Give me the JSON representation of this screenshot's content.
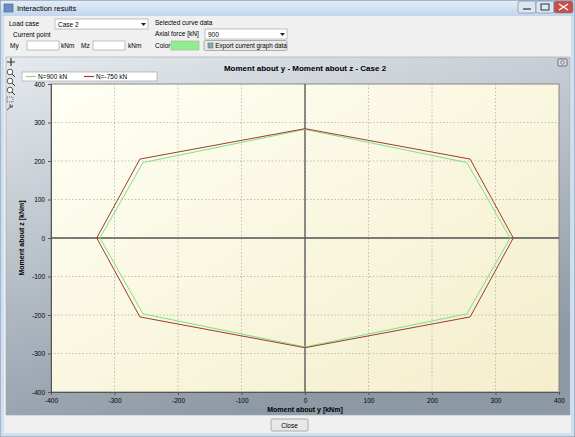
{
  "window": {
    "title": "Interaction results",
    "controls": {
      "load_case_label": "Load case",
      "load_case": "Case 2",
      "current_point_label": "Current point",
      "my_label": "My",
      "unit_my": "kNm",
      "mz_label": "Mz",
      "unit_mz": "kNm",
      "selected_curve_label": "Selected curve data",
      "axial_force_label": "Axial force [kN]",
      "axial_force": "900",
      "color_label": "Color",
      "color": "#90ee90",
      "export_button": "Export current graph data"
    },
    "close_button": "Close"
  },
  "chart_data": {
    "type": "line",
    "title": "Moment about y - Moment about z - Case 2",
    "x_label": "Moment about y [kNm]",
    "y_label": "Moment about z [kNm]",
    "xlim": [
      -400,
      400
    ],
    "ylim": [
      -400,
      400
    ],
    "xticks": [
      -400,
      -300,
      -200,
      -100,
      0,
      100,
      200,
      300,
      400
    ],
    "yticks": [
      -400,
      -300,
      -200,
      -100,
      0,
      100,
      200,
      300,
      400
    ],
    "grid": true,
    "legend": "top-left",
    "series": [
      {
        "name": "N=900 kN",
        "color": "#7fe07f",
        "x": [
          -323,
          -255,
          0,
          255,
          323,
          255,
          0,
          -255,
          -323
        ],
        "values": [
          0,
          196,
          282,
          196,
          0,
          -197,
          -283,
          -197,
          0
        ]
      },
      {
        "name": "N=-750 kN",
        "color": "#9e3a34",
        "x": [
          -328,
          -260,
          0,
          260,
          328,
          260,
          0,
          -260,
          -328
        ],
        "values": [
          0,
          205,
          284,
          205,
          0,
          -205,
          -285,
          -205,
          0
        ]
      }
    ]
  }
}
